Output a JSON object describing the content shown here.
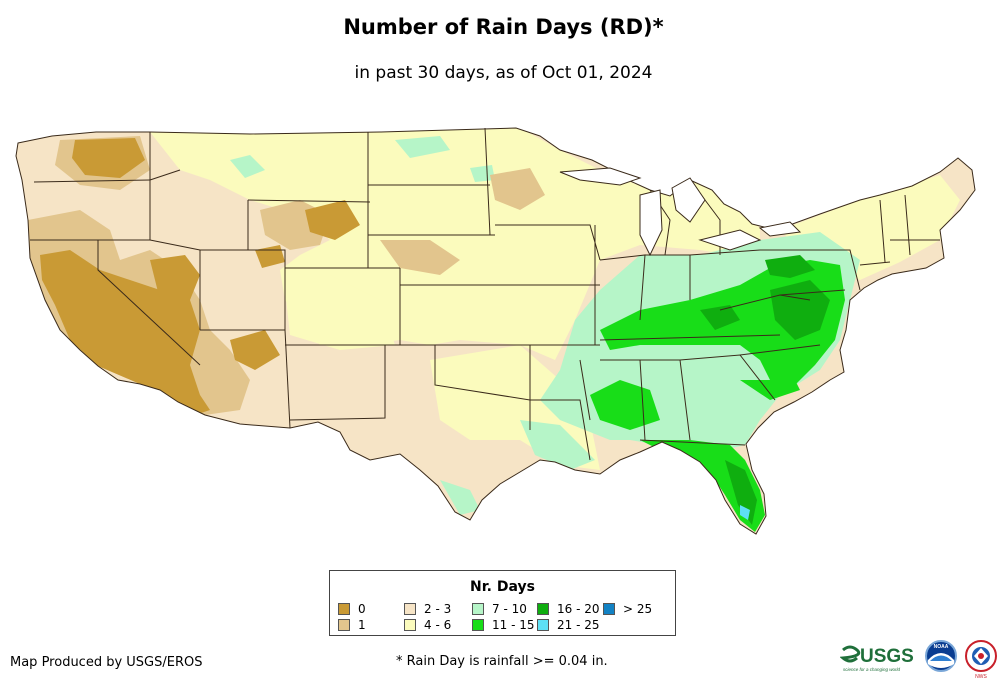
{
  "title": "Number of Rain Days (RD)*",
  "subtitle": "in past 30 days, as of Oct 01, 2024",
  "legend": {
    "title": "Nr. Days",
    "items": [
      {
        "label": "0",
        "color": "#c99a35"
      },
      {
        "label": "1",
        "color": "#e2c58d"
      },
      {
        "label": "2 - 3",
        "color": "#f6e4c6"
      },
      {
        "label": "4 - 6",
        "color": "#fbfbbd"
      },
      {
        "label": "7 - 10",
        "color": "#b6f5c8"
      },
      {
        "label": "11 - 15",
        "color": "#18dd18"
      },
      {
        "label": "16 - 20",
        "color": "#0fae0f"
      },
      {
        "label": "21 - 25",
        "color": "#5ee0f5"
      },
      {
        "label": "> 25",
        "color": "#1282c4"
      }
    ]
  },
  "footer": {
    "producer": "Map Produced by USGS/EROS",
    "note": "* Rain Day is rainfall >= 0.04 in."
  },
  "logos": {
    "usgs_text": "USGS",
    "usgs_tagline": "science for a changing world",
    "noaa_text": "NOAA",
    "nws_text": "NWS"
  },
  "colors": {
    "border": "#3a2a1a",
    "zero_days": "#c99a35"
  }
}
